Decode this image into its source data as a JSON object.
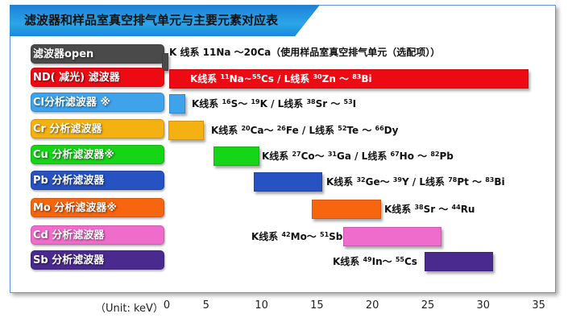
{
  "chart_data": {
    "type": "bar",
    "orientation": "horizontal-range",
    "title": "滤波器和样品室真空排气单元与主要元素对应表",
    "xlabel": "（Unit: keV）",
    "xlim": [
      0,
      35
    ],
    "xticks": [
      0,
      5,
      10,
      15,
      20,
      25,
      30,
      35
    ],
    "grid": false,
    "rows": [
      {
        "label": "滤波器open",
        "color": "#4a4a4a",
        "range": [
          1.0,
          1.6
        ],
        "annotation": [
          {
            "t": "K 线系 11Na ～20Ca（使用样品室真空排气单元（选配项））"
          }
        ]
      },
      {
        "label": "ND( 减光) 滤波器",
        "color": "#ee0a12",
        "range": [
          1.7,
          34.1
        ],
        "annotation": [
          {
            "t": "K线系 "
          },
          {
            "s": "11"
          },
          {
            "t": "Na~"
          },
          {
            "s": "55"
          },
          {
            "t": "Cs / L线系 "
          },
          {
            "s": "30"
          },
          {
            "t": "Zn ～ "
          },
          {
            "s": "83"
          },
          {
            "t": "Bi"
          }
        ]
      },
      {
        "label": "Cl分析滤波器 ※",
        "color": "#3ea3ea",
        "range": [
          1.7,
          3.1
        ],
        "annotation": [
          {
            "t": "K线系 "
          },
          {
            "s": "16"
          },
          {
            "t": "S～ "
          },
          {
            "s": "19"
          },
          {
            "t": "K / L线系 "
          },
          {
            "s": "38"
          },
          {
            "t": "Sr ～ "
          },
          {
            "s": "53"
          },
          {
            "t": "I"
          }
        ]
      },
      {
        "label": "Cr 分析滤波器",
        "color": "#f5b111",
        "range": [
          1.6,
          4.8
        ],
        "annotation": [
          {
            "t": "K线系 "
          },
          {
            "s": "20"
          },
          {
            "t": "Ca～ "
          },
          {
            "s": "26"
          },
          {
            "t": "Fe / L线系 "
          },
          {
            "s": "52"
          },
          {
            "t": "Te ～ "
          },
          {
            "s": "66"
          },
          {
            "t": "Dy"
          }
        ]
      },
      {
        "label": " Cu 分析滤波器※",
        "color": "#16d416",
        "range": [
          5.7,
          9.8
        ],
        "annotation": [
          {
            "t": "K线系 "
          },
          {
            "s": "27"
          },
          {
            "t": "Co～ "
          },
          {
            "s": "31"
          },
          {
            "t": "Ga / L线系 "
          },
          {
            "s": "67"
          },
          {
            "t": "Ho ～ "
          },
          {
            "s": "82"
          },
          {
            "t": "Pb"
          }
        ]
      },
      {
        "label": "Pb 分析滤波器",
        "color": "#2652c2",
        "range": [
          9.3,
          15.5
        ],
        "annotation": [
          {
            "t": "K线系 "
          },
          {
            "s": "32"
          },
          {
            "t": "Ge～ "
          },
          {
            "s": "39"
          },
          {
            "t": "Y / L线系 "
          },
          {
            "s": "78"
          },
          {
            "t": "Pt ～ "
          },
          {
            "s": "83"
          },
          {
            "t": "Bi"
          }
        ]
      },
      {
        "label": "Mo 分析滤波器※",
        "color": "#f7650f",
        "range": [
          14.5,
          20.8
        ],
        "annotation": [
          {
            "t": "K线系 "
          },
          {
            "s": "38"
          },
          {
            "t": "Sr ～ "
          },
          {
            "s": "44"
          },
          {
            "t": "Ru"
          }
        ]
      },
      {
        "label": "Cd 分析滤波器",
        "color": "#f06ccc",
        "range": [
          17.4,
          26.2
        ],
        "annotation": [
          {
            "t": "K线系 "
          },
          {
            "s": "42"
          },
          {
            "t": "Mo～ "
          },
          {
            "s": "51"
          },
          {
            "t": "Sb"
          }
        ]
      },
      {
        "label": "Sb 分析滤波器",
        "color": "#4a2a8e",
        "range": [
          24.7,
          30.9
        ],
        "annotation": [
          {
            "t": "K线系 "
          },
          {
            "s": "49"
          },
          {
            "t": "In～ "
          },
          {
            "s": "55"
          },
          {
            "t": "Cs"
          }
        ]
      }
    ]
  }
}
